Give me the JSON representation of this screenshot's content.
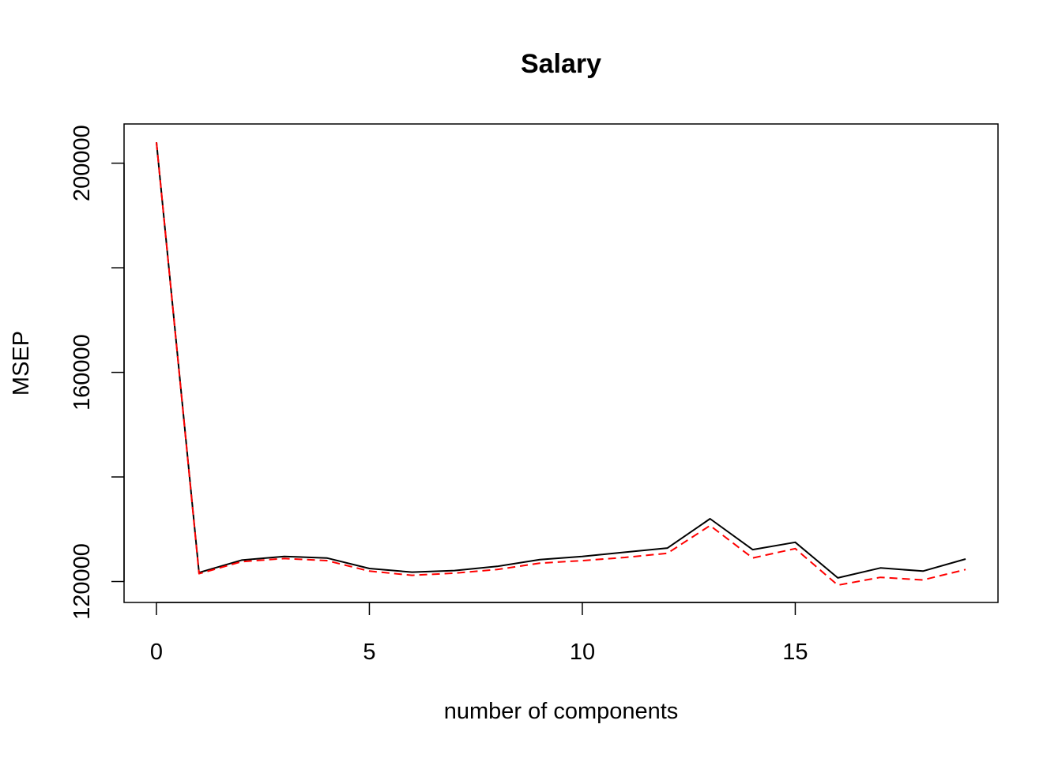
{
  "chart_data": {
    "type": "line",
    "title": "Salary",
    "xlabel": "number of components",
    "ylabel": "MSEP",
    "xlim": [
      -0.76,
      19.76
    ],
    "ylim": [
      116000,
      207500
    ],
    "x_ticks": [
      0,
      5,
      10,
      15
    ],
    "y_ticks": [
      120000,
      140000,
      160000,
      180000,
      200000
    ],
    "y_tick_labels": [
      {
        "value": 120000,
        "label": "120000"
      },
      {
        "value": 160000,
        "label": "160000"
      },
      {
        "value": 200000,
        "label": "200000"
      }
    ],
    "x": [
      0,
      1,
      2,
      3,
      4,
      5,
      6,
      7,
      8,
      9,
      10,
      11,
      12,
      13,
      14,
      15,
      16,
      17,
      18,
      19
    ],
    "series": [
      {
        "values": [
          204000,
          121700,
          124100,
          124800,
          124500,
          122500,
          121800,
          122100,
          122900,
          124200,
          124800,
          125600,
          126400,
          132000,
          126100,
          127500,
          120700,
          122600,
          122000,
          124300
        ],
        "color": "#000000",
        "dash": "solid"
      },
      {
        "values": [
          204000,
          121500,
          123800,
          124400,
          124000,
          122000,
          121200,
          121600,
          122300,
          123500,
          124000,
          124600,
          125400,
          130700,
          124500,
          126300,
          119300,
          120800,
          120300,
          122300
        ],
        "color": "#ff0000",
        "dash": "dashed"
      }
    ],
    "grid": false,
    "legend": "none"
  }
}
